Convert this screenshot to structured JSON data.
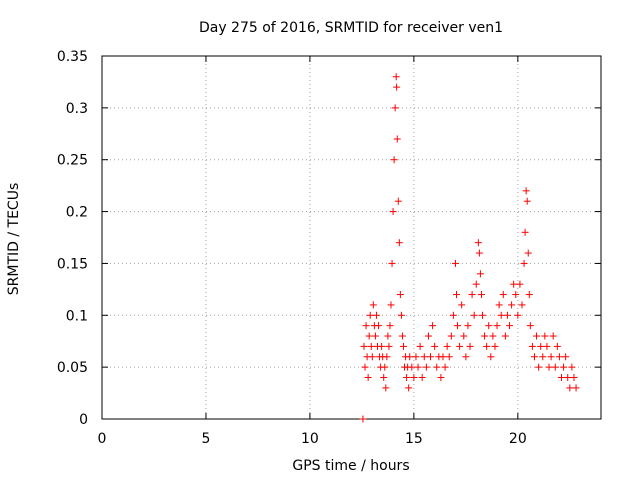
{
  "chart_data": {
    "type": "scatter",
    "title": "Day 275 of 2016, SRMTID for receiver ven1",
    "xlabel": "GPS time / hours",
    "ylabel": "SRMTID / TECUs",
    "xlim": [
      0,
      24
    ],
    "ylim": [
      0,
      0.35
    ],
    "xticks": [
      0,
      5,
      10,
      15,
      20
    ],
    "xtick_labels": [
      "0",
      "5",
      "10",
      "15",
      "20"
    ],
    "yticks": [
      0,
      0.05,
      0.1,
      0.15,
      0.2,
      0.25,
      0.3,
      0.35
    ],
    "ytick_labels": [
      "0",
      "0.05",
      "0.1",
      "0.15",
      "0.2",
      "0.25",
      "0.3",
      "0.35"
    ],
    "grid": true,
    "marker": "+",
    "marker_color": "#ff0000",
    "series": [
      {
        "name": "ven1",
        "points": [
          [
            12.55,
            0.0
          ],
          [
            12.6,
            0.07
          ],
          [
            12.65,
            0.05
          ],
          [
            12.7,
            0.09
          ],
          [
            12.75,
            0.06
          ],
          [
            12.8,
            0.04
          ],
          [
            12.85,
            0.08
          ],
          [
            12.9,
            0.1
          ],
          [
            12.95,
            0.07
          ],
          [
            13.0,
            0.06
          ],
          [
            13.05,
            0.11
          ],
          [
            13.1,
            0.09
          ],
          [
            13.15,
            0.08
          ],
          [
            13.2,
            0.1
          ],
          [
            13.25,
            0.07
          ],
          [
            13.3,
            0.09
          ],
          [
            13.35,
            0.06
          ],
          [
            13.4,
            0.05
          ],
          [
            13.45,
            0.07
          ],
          [
            13.5,
            0.06
          ],
          [
            13.55,
            0.04
          ],
          [
            13.6,
            0.05
          ],
          [
            13.65,
            0.03
          ],
          [
            13.7,
            0.06
          ],
          [
            13.75,
            0.08
          ],
          [
            13.8,
            0.07
          ],
          [
            13.85,
            0.09
          ],
          [
            13.9,
            0.11
          ],
          [
            13.95,
            0.15
          ],
          [
            14.0,
            0.2
          ],
          [
            14.05,
            0.25
          ],
          [
            14.1,
            0.3
          ],
          [
            14.15,
            0.33
          ],
          [
            14.17,
            0.32
          ],
          [
            14.2,
            0.27
          ],
          [
            14.25,
            0.21
          ],
          [
            14.3,
            0.17
          ],
          [
            14.35,
            0.12
          ],
          [
            14.4,
            0.1
          ],
          [
            14.45,
            0.08
          ],
          [
            14.5,
            0.07
          ],
          [
            14.55,
            0.05
          ],
          [
            14.6,
            0.06
          ],
          [
            14.65,
            0.04
          ],
          [
            14.7,
            0.05
          ],
          [
            14.75,
            0.03
          ],
          [
            14.8,
            0.06
          ],
          [
            14.9,
            0.05
          ],
          [
            15.0,
            0.04
          ],
          [
            15.1,
            0.06
          ],
          [
            15.2,
            0.05
          ],
          [
            15.3,
            0.07
          ],
          [
            15.4,
            0.04
          ],
          [
            15.5,
            0.06
          ],
          [
            15.6,
            0.05
          ],
          [
            15.7,
            0.08
          ],
          [
            15.8,
            0.06
          ],
          [
            15.9,
            0.09
          ],
          [
            16.0,
            0.07
          ],
          [
            16.1,
            0.05
          ],
          [
            16.2,
            0.06
          ],
          [
            16.3,
            0.04
          ],
          [
            16.4,
            0.06
          ],
          [
            16.5,
            0.05
          ],
          [
            16.6,
            0.07
          ],
          [
            16.7,
            0.06
          ],
          [
            16.8,
            0.08
          ],
          [
            16.9,
            0.1
          ],
          [
            17.0,
            0.15
          ],
          [
            17.05,
            0.12
          ],
          [
            17.1,
            0.09
          ],
          [
            17.2,
            0.07
          ],
          [
            17.3,
            0.11
          ],
          [
            17.4,
            0.08
          ],
          [
            17.5,
            0.06
          ],
          [
            17.6,
            0.09
          ],
          [
            17.7,
            0.07
          ],
          [
            17.8,
            0.12
          ],
          [
            17.9,
            0.1
          ],
          [
            18.0,
            0.13
          ],
          [
            18.1,
            0.17
          ],
          [
            18.15,
            0.16
          ],
          [
            18.2,
            0.14
          ],
          [
            18.25,
            0.12
          ],
          [
            18.3,
            0.1
          ],
          [
            18.4,
            0.08
          ],
          [
            18.5,
            0.07
          ],
          [
            18.6,
            0.09
          ],
          [
            18.7,
            0.06
          ],
          [
            18.8,
            0.08
          ],
          [
            18.9,
            0.07
          ],
          [
            19.0,
            0.09
          ],
          [
            19.1,
            0.11
          ],
          [
            19.2,
            0.1
          ],
          [
            19.3,
            0.12
          ],
          [
            19.4,
            0.08
          ],
          [
            19.5,
            0.1
          ],
          [
            19.6,
            0.09
          ],
          [
            19.7,
            0.11
          ],
          [
            19.8,
            0.13
          ],
          [
            19.9,
            0.12
          ],
          [
            20.0,
            0.1
          ],
          [
            20.1,
            0.13
          ],
          [
            20.2,
            0.11
          ],
          [
            20.3,
            0.15
          ],
          [
            20.35,
            0.18
          ],
          [
            20.4,
            0.22
          ],
          [
            20.45,
            0.21
          ],
          [
            20.5,
            0.16
          ],
          [
            20.55,
            0.12
          ],
          [
            20.6,
            0.09
          ],
          [
            20.7,
            0.07
          ],
          [
            20.8,
            0.06
          ],
          [
            20.9,
            0.08
          ],
          [
            21.0,
            0.05
          ],
          [
            21.1,
            0.07
          ],
          [
            21.2,
            0.06
          ],
          [
            21.3,
            0.08
          ],
          [
            21.4,
            0.07
          ],
          [
            21.5,
            0.05
          ],
          [
            21.6,
            0.06
          ],
          [
            21.7,
            0.08
          ],
          [
            21.8,
            0.05
          ],
          [
            21.9,
            0.07
          ],
          [
            22.0,
            0.06
          ],
          [
            22.1,
            0.04
          ],
          [
            22.2,
            0.05
          ],
          [
            22.3,
            0.06
          ],
          [
            22.4,
            0.04
          ],
          [
            22.5,
            0.03
          ],
          [
            22.6,
            0.05
          ],
          [
            22.7,
            0.04
          ],
          [
            22.8,
            0.03
          ]
        ]
      }
    ]
  }
}
